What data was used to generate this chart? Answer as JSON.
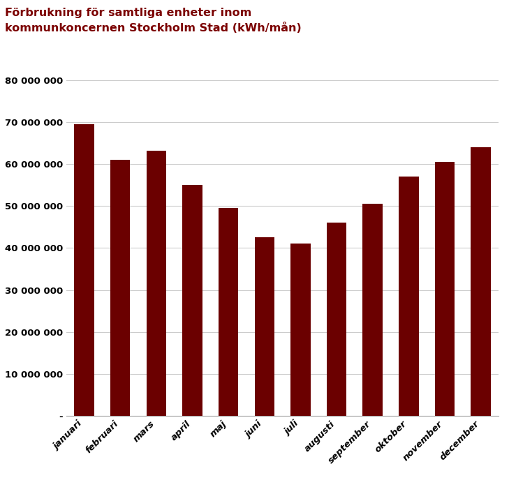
{
  "title_line1": "Förbrukning för samtliga enheter inom",
  "title_line2": "kommunkoncernen Stockholm Stad (kWh/mån)",
  "categories": [
    "januari",
    "februari",
    "mars",
    "april",
    "maj",
    "juni",
    "juli",
    "augusti",
    "september",
    "oktober",
    "november",
    "december"
  ],
  "values": [
    69500000,
    61000000,
    63200000,
    55000000,
    49500000,
    42500000,
    41000000,
    46000000,
    50500000,
    57000000,
    60500000,
    64000000
  ],
  "bar_color": "#6B0000",
  "ylim": [
    0,
    80000000
  ],
  "ytick_step": 10000000,
  "background_color": "#ffffff",
  "title_color": "#7B0000",
  "title_fontsize": 11.5,
  "tick_fontsize": 9.5
}
